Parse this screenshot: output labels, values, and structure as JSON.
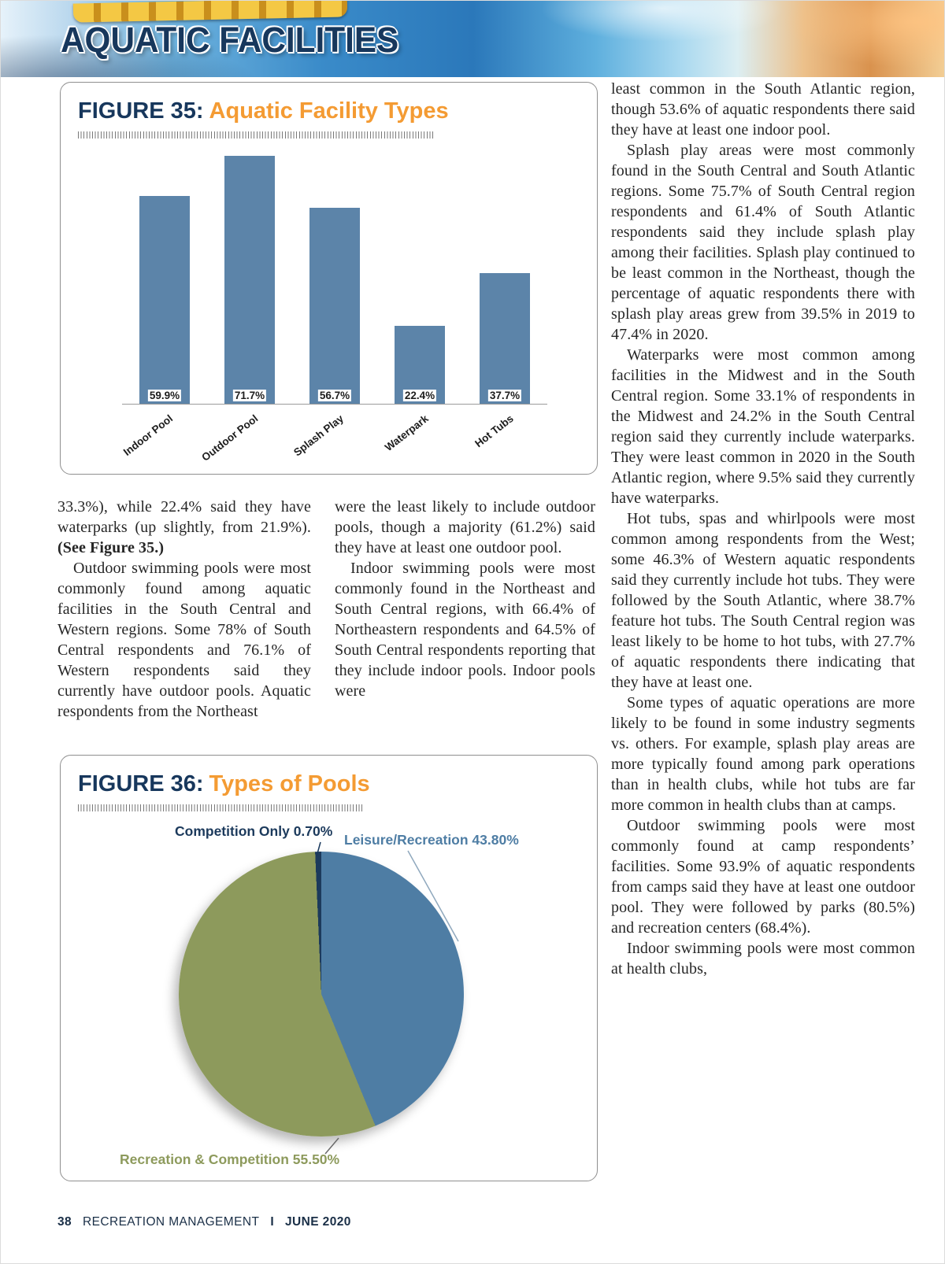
{
  "header": {
    "title": "AQUATIC FACILITIES"
  },
  "colors": {
    "navy": "#17375c",
    "orange": "#f49b33",
    "bar_blue": "#5c84a9",
    "pie_blue": "#4e7da4",
    "pie_olive": "#8d9a5c"
  },
  "figures": {
    "fig35": {
      "label": "FIGURE 35:",
      "title": "Aquatic Facility Types"
    },
    "fig36": {
      "label": "FIGURE 36:",
      "title": "Types of Pools"
    }
  },
  "chart_data": [
    {
      "id": "fig35",
      "type": "bar",
      "title": "Aquatic Facility Types",
      "categories": [
        "Indoor Pool",
        "Outdoor Pool",
        "Splash Play",
        "Waterpark",
        "Hot Tubs"
      ],
      "values": [
        59.9,
        71.7,
        56.7,
        22.4,
        37.7
      ],
      "value_labels": [
        "59.9%",
        "71.7%",
        "56.7%",
        "22.4%",
        "37.7%"
      ],
      "ylim": [
        0,
        75
      ],
      "bar_color": "#5c84a9",
      "grid": false,
      "legend": "none"
    },
    {
      "id": "fig36",
      "type": "pie",
      "title": "Types of Pools",
      "start_angle_deg": -2.5,
      "direction": "clockwise",
      "slices": [
        {
          "label": "Competition Only",
          "value": 0.7,
          "display": "Competition Only 0.70%",
          "color": "#1c3a5c"
        },
        {
          "label": "Leisure/Recreation",
          "value": 43.8,
          "display": "Leisure/Recreation 43.80%",
          "color": "#4e7da4"
        },
        {
          "label": "Recreation & Competition",
          "value": 55.5,
          "display": "Recreation & Competition 55.50%",
          "color": "#8d9a5c"
        }
      ]
    }
  ],
  "article": {
    "columns": [
      {
        "id": "col-left",
        "paragraphs": [
          {
            "indent": false,
            "text": "33.3%), while 22.4% said they have waterparks (up slightly, from 21.9%). ",
            "bold": "(See Figure 35.)"
          },
          {
            "indent": true,
            "text": "Outdoor swimming pools were most commonly found among aquatic facilities in the South Central and Western regions. Some 78% of South Central respondents and 76.1% of Western respondents said they currently have outdoor pools. Aquatic respondents from the Northeast"
          }
        ]
      },
      {
        "id": "col-mid",
        "paragraphs": [
          {
            "indent": false,
            "text": "were the least likely to include outdoor pools, though a majority (61.2%) said they have at least one outdoor pool."
          },
          {
            "indent": true,
            "text": "Indoor swimming pools were most commonly found in the Northeast and South Central regions, with 66.4% of Northeastern respondents and 64.5% of South Central respondents reporting that they include indoor pools. Indoor pools were"
          }
        ]
      },
      {
        "id": "col-right",
        "paragraphs": [
          {
            "indent": false,
            "text": "least common in the South Atlantic region, though 53.6% of aquatic respondents there said they have at least one indoor pool."
          },
          {
            "indent": true,
            "text": "Splash play areas were most commonly found in the South Central and South Atlantic regions. Some 75.7% of South Central region respondents and 61.4% of South Atlantic respondents said they include splash play among their facilities. Splash play continued to be least common in the Northeast, though the percentage of aquatic respondents there with splash play areas grew from 39.5% in 2019 to 47.4% in 2020."
          },
          {
            "indent": true,
            "text": "Waterparks were most common among facilities in the Midwest and in the South Central region. Some 33.1% of respondents in the Midwest and 24.2% in the South Central region said they currently include waterparks. They were least common in 2020 in the South Atlantic region, where 9.5% said they currently have waterparks."
          },
          {
            "indent": true,
            "text": "Hot tubs, spas and whirlpools were most common among respondents from the West; some 46.3% of Western aquatic respondents said they currently include hot tubs. They were followed by the South Atlantic, where 38.7% feature hot tubs. The South Central region was least likely to be home to hot tubs, with 27.7% of aquatic respondents there indicating that they have at least one."
          },
          {
            "indent": true,
            "text": "Some types of aquatic operations are more likely to be found in some industry segments vs. others. For example, splash play areas are more typically found among park operations than in health clubs, while hot tubs are far more common in health clubs than at camps."
          },
          {
            "indent": true,
            "text": "Outdoor swimming pools were most commonly found at camp respondents’ facilities. Some 93.9% of aquatic respondents from camps said they have at least one outdoor pool. They were followed by parks (80.5%) and recreation centers (68.4%)."
          },
          {
            "indent": true,
            "text": "Indoor swimming pools were most common at health clubs,"
          }
        ]
      }
    ]
  },
  "footer": {
    "page_number": "38",
    "magazine": "RECREATION MANAGEMENT",
    "separator": "I",
    "issue": "JUNE 2020"
  }
}
